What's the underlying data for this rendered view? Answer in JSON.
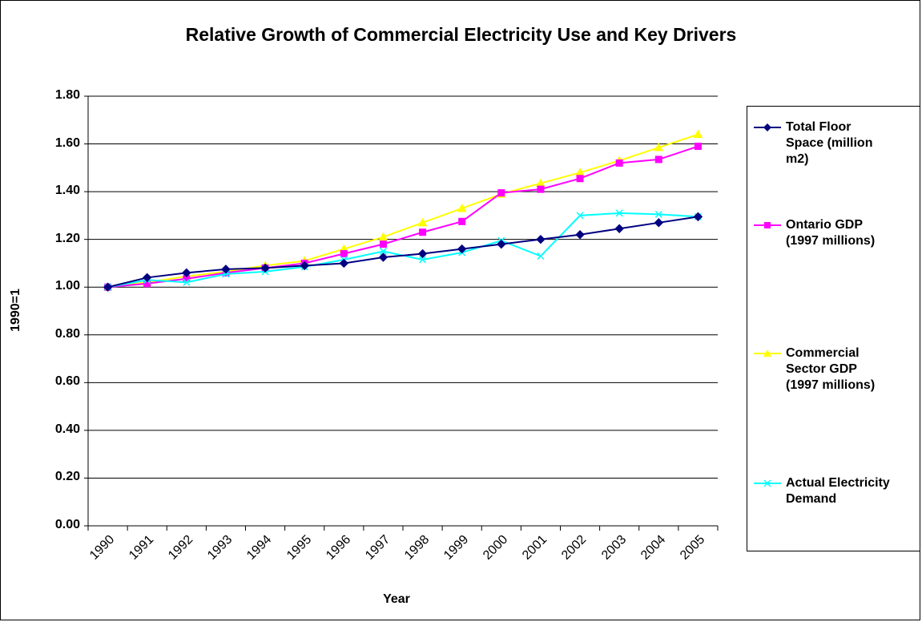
{
  "chart_data": {
    "type": "line",
    "title": "Relative Growth of Commercial Electricity Use and Key Drivers",
    "xlabel": "Year",
    "ylabel": "1990=1",
    "ylim": [
      0,
      1.8
    ],
    "yticks": [
      "0.00",
      "0.20",
      "0.40",
      "0.60",
      "0.80",
      "1.00",
      "1.20",
      "1.40",
      "1.60",
      "1.80"
    ],
    "grid": "horizontal",
    "legend_position": "right",
    "categories": [
      "1990",
      "1991",
      "1992",
      "1993",
      "1994",
      "1995",
      "1996",
      "1997",
      "1998",
      "1999",
      "2000",
      "2001",
      "2002",
      "2003",
      "2004",
      "2005"
    ],
    "series": [
      {
        "name": "Total Floor Space (million m2)",
        "color": "#000080",
        "marker": "diamond",
        "values": [
          1.0,
          1.04,
          1.06,
          1.075,
          1.08,
          1.09,
          1.1,
          1.125,
          1.14,
          1.16,
          1.18,
          1.2,
          1.22,
          1.245,
          1.27,
          1.295
        ]
      },
      {
        "name": "Ontario GDP (1997 millions)",
        "color": "#ff00ff",
        "marker": "square",
        "values": [
          1.0,
          1.015,
          1.035,
          1.06,
          1.08,
          1.1,
          1.14,
          1.18,
          1.23,
          1.275,
          1.395,
          1.41,
          1.455,
          1.52,
          1.535,
          1.59
        ]
      },
      {
        "name": "Commercial Sector GDP (1997 millions)",
        "color": "#ffff00",
        "marker": "triangle",
        "values": [
          1.0,
          1.02,
          1.045,
          1.065,
          1.09,
          1.11,
          1.16,
          1.21,
          1.27,
          1.33,
          1.39,
          1.435,
          1.48,
          1.53,
          1.585,
          1.64
        ]
      },
      {
        "name": "Actual Electricity Demand",
        "color": "#00ffff",
        "marker": "x",
        "values": [
          1.0,
          1.03,
          1.02,
          1.055,
          1.065,
          1.085,
          1.115,
          1.15,
          1.115,
          1.145,
          1.195,
          1.13,
          1.3,
          1.31,
          1.305,
          1.295
        ]
      }
    ],
    "legend_labels": [
      [
        "Total Floor",
        "Space (million",
        "m2)"
      ],
      [
        "Ontario GDP",
        "(1997 millions)"
      ],
      [
        "Commercial",
        "Sector GDP",
        "(1997 millions)"
      ],
      [
        "Actual Electricity",
        "Demand"
      ]
    ]
  }
}
